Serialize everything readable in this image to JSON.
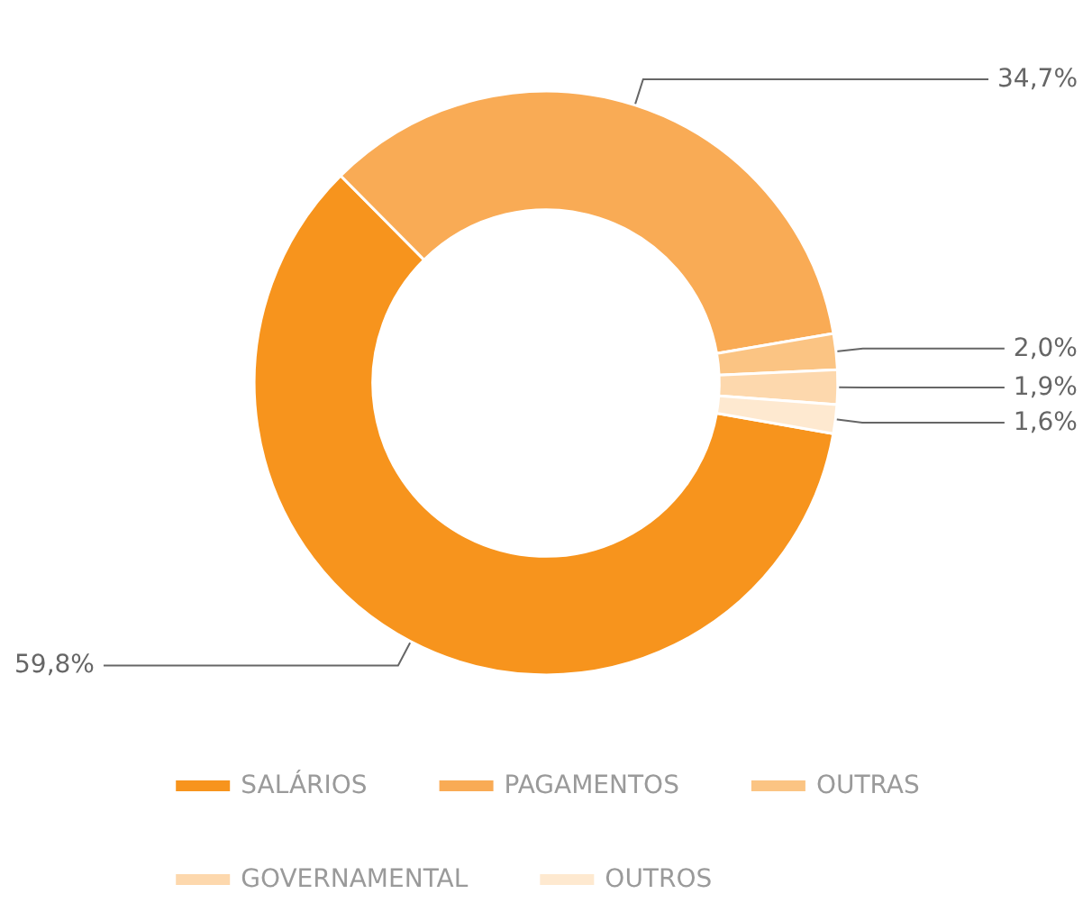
{
  "chart_data": {
    "type": "donut",
    "categories": [
      "SALÁRIOS",
      "PAGAMENTOS",
      "OUTRAS",
      "GOVERNAMENTAL",
      "OUTROS"
    ],
    "values": [
      59.8,
      34.7,
      2.0,
      1.9,
      1.6
    ],
    "colors": [
      "#f7941d",
      "#f9ab55",
      "#fbc483",
      "#fdd8ad",
      "#fee9d0"
    ],
    "value_labels": [
      "59,8%",
      "34,7%",
      "2,0%",
      "1,9%",
      "1,6%"
    ],
    "legend": "bottom"
  }
}
